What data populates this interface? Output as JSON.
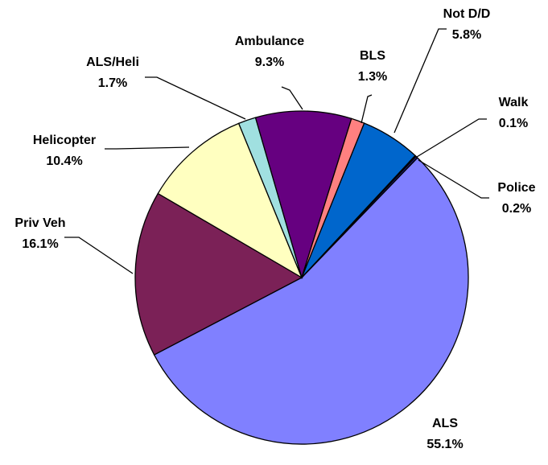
{
  "chart_data": {
    "type": "pie",
    "categories": [
      "ALS",
      "Priv Veh",
      "Helicopter",
      "ALS/Heli",
      "Ambulance",
      "BLS",
      "Not D/D",
      "Walk",
      "Police"
    ],
    "values": [
      55.1,
      16.1,
      10.4,
      1.7,
      9.3,
      1.3,
      5.8,
      0.1,
      0.2
    ],
    "value_labels": [
      "55.1%",
      "16.1%",
      "10.4%",
      "1.7%",
      "9.3%",
      "1.3%",
      "5.8%",
      "0.1%",
      "0.2%"
    ],
    "colors": [
      "#8080ff",
      "#7b2157",
      "#ffffc0",
      "#a0e0e0",
      "#660080",
      "#ff8080",
      "#0066cc",
      "#000080",
      "#1a1a6e"
    ]
  }
}
